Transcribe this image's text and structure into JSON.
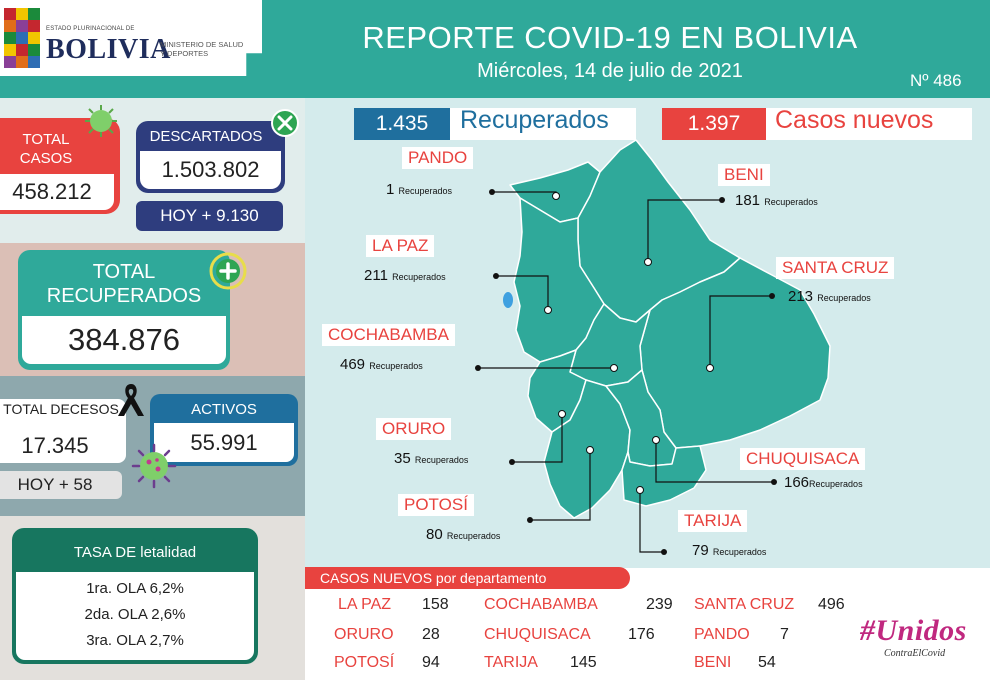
{
  "header": {
    "logo_small": "ESTADO PLURINACIONAL DE",
    "logo_big": "BOLIVIA",
    "logo_ministry": "MINISTERIO DE SALUD Y DEPORTES",
    "title": "REPORTE COVID-19 EN BOLIVIA",
    "date": "Miércoles, 14 de julio de 2021",
    "report_number": "Nº 486"
  },
  "colors": {
    "teal": "#2fa99a",
    "red": "#e8433f",
    "navy": "#2e3d7e",
    "green": "#17765f"
  },
  "left": {
    "total_casos_label": "TOTAL CASOS",
    "total_casos_value": "458.212",
    "descartados_label": "DESCARTADOS",
    "descartados_value": "1.503.802",
    "descartados_hoy": "HOY + 9.130",
    "total_recuperados_label": "TOTAL RECUPERADOS",
    "total_recuperados_value": "384.876",
    "total_decesos_label": "TOTAL DECESOS",
    "total_decesos_value": "17.345",
    "decesos_hoy": "HOY + 58",
    "activos_label": "ACTIVOS",
    "activos_value": "55.991",
    "letalidad_title": "TASA DE letalidad",
    "letalidad_items": [
      "1ra. OLA 6,2%",
      "2da. OLA 2,6%",
      "3ra. OLA 2,7%"
    ]
  },
  "summary": {
    "recuperados_value": "1.435",
    "recuperados_label": "Recuperados",
    "casos_nuevos_value": "1.397",
    "casos_nuevos_label": "Casos nuevos"
  },
  "departments": [
    {
      "name": "PANDO",
      "value": "1",
      "unit": "Recuperados"
    },
    {
      "name": "BENI",
      "value": "181",
      "unit": "Recuperados"
    },
    {
      "name": "LA PAZ",
      "value": "211",
      "unit": "Recuperados"
    },
    {
      "name": "SANTA CRUZ",
      "value": "213",
      "unit": "Recuperados"
    },
    {
      "name": "COCHABAMBA",
      "value": "469",
      "unit": "Recuperados"
    },
    {
      "name": "ORURO",
      "value": "35",
      "unit": "Recuperados"
    },
    {
      "name": "CHUQUISACA",
      "value": "166",
      "unit": "Recuperados"
    },
    {
      "name": "POTOSÍ",
      "value": "80",
      "unit": "Recuperados"
    },
    {
      "name": "TARIJA",
      "value": "79",
      "unit": "Recuperados"
    }
  ],
  "casos_nuevos": {
    "title": "CASOS NUEVOS por departamento",
    "rows": [
      [
        {
          "name": "LA PAZ",
          "value": "158"
        },
        {
          "name": "COCHABAMBA",
          "value": "239"
        },
        {
          "name": "SANTA CRUZ",
          "value": "496"
        }
      ],
      [
        {
          "name": "ORURO",
          "value": "28"
        },
        {
          "name": "CHUQUISACA",
          "value": "176"
        },
        {
          "name": "PANDO",
          "value": "7"
        }
      ],
      [
        {
          "name": "POTOSÍ",
          "value": "94"
        },
        {
          "name": "TARIJA",
          "value": "145"
        },
        {
          "name": "BENI",
          "value": "54"
        }
      ]
    ]
  },
  "campaign": {
    "main": "#Unidos",
    "sub": "ContraElCovid"
  }
}
